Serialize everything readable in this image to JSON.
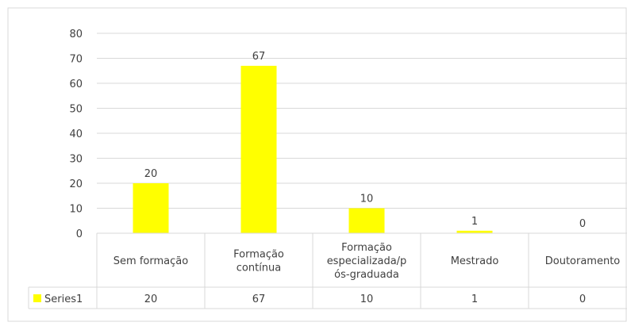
{
  "chart_data": {
    "type": "bar",
    "categories": [
      "Sem formação",
      "Formação contínua",
      "Formação especializada/pós-graduada",
      "Mestrado",
      "Doutoramento"
    ],
    "category_lines": [
      [
        "Sem formação"
      ],
      [
        "Formação",
        "contínua"
      ],
      [
        "Formação",
        "especializada/p",
        "ós-graduada"
      ],
      [
        "Mestrado"
      ],
      [
        "Doutoramento"
      ]
    ],
    "series": [
      {
        "name": "Series1",
        "values": [
          20,
          67,
          10,
          1,
          0
        ],
        "color": "#ffff00"
      }
    ],
    "ylim": [
      0,
      80
    ],
    "yticks": [
      0,
      10,
      20,
      30,
      40,
      50,
      60,
      70,
      80
    ],
    "grid": true,
    "data_labels": true,
    "data_table": true,
    "legend": "in-data-table",
    "colors": {
      "bar": "#ffff00",
      "grid": "#d9d9d9",
      "text": "#404040",
      "frame": "#d9d9d9"
    }
  }
}
